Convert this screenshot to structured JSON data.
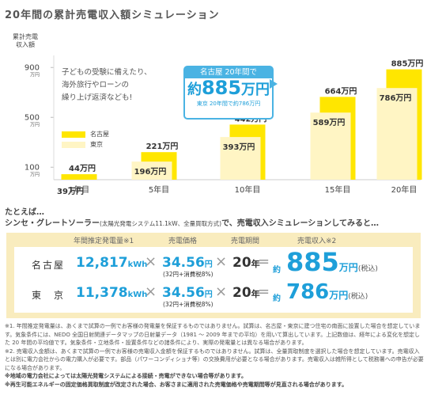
{
  "page": {
    "title": "20年間の累計売電収入額シミュレーション"
  },
  "chart_data": {
    "type": "bar",
    "ylabel": "累計売電収入額",
    "y_unit": "万円",
    "y_ticks": [
      100,
      500,
      900
    ],
    "categories": [
      "1年目",
      "5年目",
      "10年目",
      "15年目",
      "20年目"
    ],
    "series": [
      {
        "name": "名古屋",
        "color": "#ffe600",
        "values": [
          44,
          221,
          442,
          664,
          885
        ],
        "labels": [
          "44万円",
          "221万円",
          "442万円",
          "664万円",
          "885万円"
        ]
      },
      {
        "name": "東京",
        "color": "#fff5c4",
        "values": [
          39,
          196,
          393,
          589,
          786
        ],
        "labels": [
          "39万円",
          "196万円",
          "393万円",
          "589万円",
          "786万円"
        ]
      }
    ]
  },
  "chart_text": {
    "ylabel_line1": "累計売電",
    "ylabel_line2": "収入額",
    "note_line1": "子どもの受験に備えたり、",
    "note_line2": "海外旅行やローンの",
    "note_line3": "繰り上げ返済なども!"
  },
  "callout": {
    "head": "名古屋 20年間で",
    "approx": "約",
    "amount": "885",
    "unit": "万円",
    "sub": "東京 20年間で約786万円"
  },
  "intro": {
    "line1": "たとえば…",
    "line2_a": "シンセ・グレートソーラー",
    "line2_b": "(太陽光発電システム11.1kW、全量買取方式)",
    "line2_c": "で、売電収入シミュレーションしてみると…"
  },
  "sim": {
    "headers": {
      "kwh": "年間推定発電量※1",
      "price": "売電価格",
      "period": "売電期間",
      "income": "売電収入※2"
    },
    "rows": [
      {
        "location": "名古屋",
        "kwh": "12,817",
        "kwh_unit": "kWh",
        "price": "34.56",
        "price_unit": "円",
        "price_note": "(32円+消費税8%)",
        "years": "20",
        "years_unit": "年",
        "approx": "約",
        "income": "885",
        "income_unit": "万円",
        "tax": "(税込)"
      },
      {
        "location": "東　京",
        "kwh": "11,378",
        "kwh_unit": "kWh",
        "price": "34.56",
        "price_unit": "円",
        "price_note": "(32円+消費税8%)",
        "years": "20",
        "years_unit": "年",
        "approx": "約",
        "income": "786",
        "income_unit": "万円",
        "tax": "(税込)"
      }
    ],
    "times": "×",
    "equals": "="
  },
  "notes": [
    "※1. 年間推定発電量は、あくまで試算の一例でお客様の発電量を保証するものではありません。試算は、名古屋・東京に建つ住宅の南面に設置した場合を想定しています。気象条件には、NEDO 全国日射関連データマップの日射量データ（1981 ～ 2009 年までの平均）を用いて算出しています。上記数値は、経年による変化を想定した 20 年間の平均値です。気象条件・立地条件・設置条件などの諸条件により、実際の発電量とは異なる場合があります。",
    "※2. 売電収入金額は、あくまで試算の一例でお客様の売電収入金額を保証するものではありません。試算は、全量買取制度を選択した場合を想定しています。売電収入とは別に電力会社からの電力購入が必要です。部品（パワーコンディショナ等）の交換費用が必要となる場合があります。売電収入は雑所得として税務署への申告が必要になる場合があります。",
    "※地域の電力会社によっては太陽光発電システムによる接続・売電ができない場合等があります。",
    "※再生可能エネルギーの固定価格買取制度が改定された場合、お客さまに適用された売電価格や売電期間等が見直される場合があります。"
  ]
}
